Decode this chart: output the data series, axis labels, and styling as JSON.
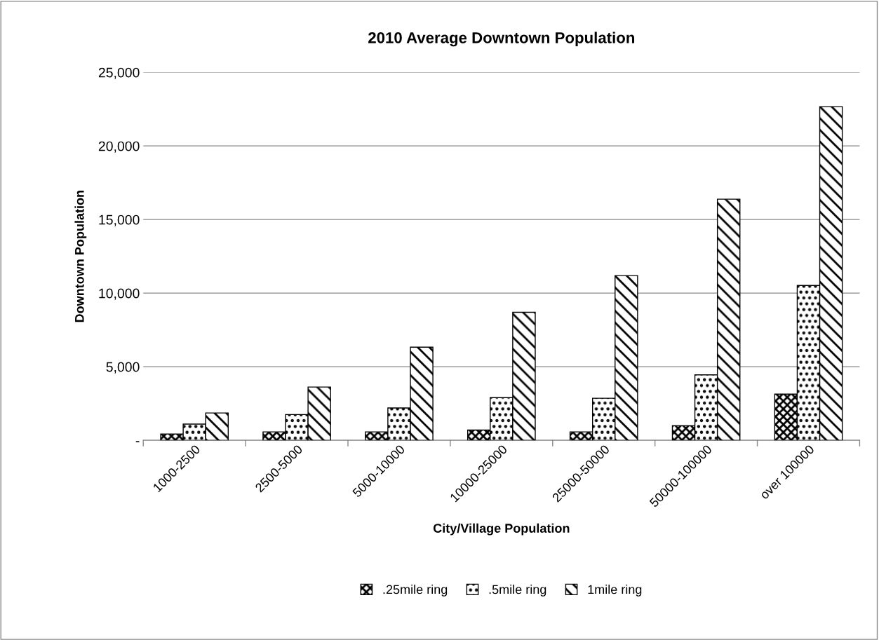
{
  "chart_data": {
    "type": "bar",
    "title": "2010 Average Downtown Population",
    "xlabel": "City/Village Population",
    "ylabel": "Downtown Population",
    "categories": [
      "1000-2500",
      "2500-5000",
      "5000-10000",
      "10000-25000",
      "25000-50000",
      "50000-100000",
      "over 100000"
    ],
    "series": [
      {
        "name": ".25mile ring",
        "color": "#000000",
        "values": [
          430,
          570,
          570,
          700,
          570,
          1000,
          3140
        ]
      },
      {
        "name": ".5mile ring",
        "color": "#000000",
        "values": [
          1100,
          1750,
          2200,
          2900,
          2860,
          4450,
          10520
        ]
      },
      {
        "name": "1mile ring",
        "color": "#000000",
        "values": [
          1860,
          3620,
          6330,
          8700,
          11190,
          16380,
          22670
        ]
      }
    ],
    "ylim": [
      0,
      25000
    ],
    "yticks": [
      {
        "value": 0,
        "label": "-"
      },
      {
        "value": 5000,
        "label": "5,000"
      },
      {
        "value": 10000,
        "label": "10,000"
      },
      {
        "value": 15000,
        "label": "15,000"
      },
      {
        "value": 20000,
        "label": "20,000"
      },
      {
        "value": 25000,
        "label": "25,000"
      }
    ],
    "grid": "y",
    "legend": "bottom"
  }
}
